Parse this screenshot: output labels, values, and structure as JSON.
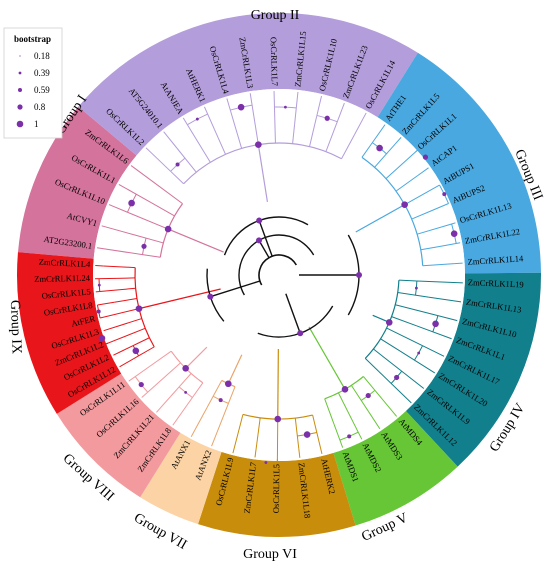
{
  "legend": {
    "title": "bootstrap",
    "items": [
      "0.18",
      "0.39",
      "0.59",
      "0.8",
      "1"
    ],
    "color": "#7b2fa8"
  },
  "groups": [
    {
      "label": "Group I",
      "color": "#d4739c",
      "leaves": [
        "AT2G23200.1",
        "AtCVY1",
        "OsCrRLK1L10",
        "OsCrRLK1L1",
        "ZmCrRLK1L6"
      ]
    },
    {
      "label": "Group II",
      "color": "#b39ddb",
      "leaves": [
        "OsCrRLK1L2",
        "AT5G24010.1",
        "AtANJEA",
        "AtHERK1",
        "OsCrRLK1L4",
        "ZmCrRLK1L3",
        "OsCrRLK1L7",
        "ZmCrRLK1L15",
        "OsCrRLK1L10",
        "ZmCrRLK1L23",
        "OsCrRLK1L14"
      ]
    },
    {
      "label": "Group III",
      "color": "#49a8e0",
      "leaves": [
        "AtTHE1",
        "ZmCrRLK1L5",
        "OsCrRLK1L1",
        "AtCAP1",
        "AtBUPS1",
        "AtBUPS2",
        "OsCrRLK1L13",
        "ZmCrRLK1L22",
        "ZmCrRLK1L14"
      ]
    },
    {
      "label": "Group IV",
      "color": "#127f8c",
      "leaves": [
        "ZmCrRLK1L19",
        "ZmCrRLK1L13",
        "ZmCrRLK1L10",
        "ZmCrRLK1L1",
        "ZmCrRLK1L17",
        "ZmCrRLK1L20",
        "ZmCrRLK1L9",
        "ZmCrRLK1L12"
      ]
    },
    {
      "label": "Group V",
      "color": "#66c635",
      "leaves": [
        "AtMDS4",
        "AtMDS3",
        "AtMDS2",
        "AtMDS1"
      ]
    },
    {
      "label": "Group VI",
      "color": "#c98d0c",
      "leaves": [
        "AtHERK2",
        "ZmCrRLK1L18",
        "OsCrRLK1L5",
        "ZmCrRLK1L7",
        "OsCrRLK1L9"
      ]
    },
    {
      "label": "Group VII",
      "color": "#fbd3a4",
      "leaves": [
        "AtANX2",
        "AtANX1"
      ]
    },
    {
      "label": "Group VIII",
      "color": "#f39a9e",
      "leaves": [
        "ZmCrRLK1L8",
        "ZmCrRLK1L21",
        "OsCrRLK1L16",
        "OsCrRLK1L11"
      ]
    },
    {
      "label": "Group IX",
      "color": "#e8161b",
      "leaves": [
        "OsCrRLK1L12",
        "OsCrRLK1L2",
        "ZmCrRLK1L2",
        "OsCrRLK1L3",
        "AtFER",
        "OsCrRLK1L8",
        "OsCrRLK1L5",
        "ZmCrRLK1L24",
        "ZmCrRLK1L4"
      ]
    }
  ]
}
